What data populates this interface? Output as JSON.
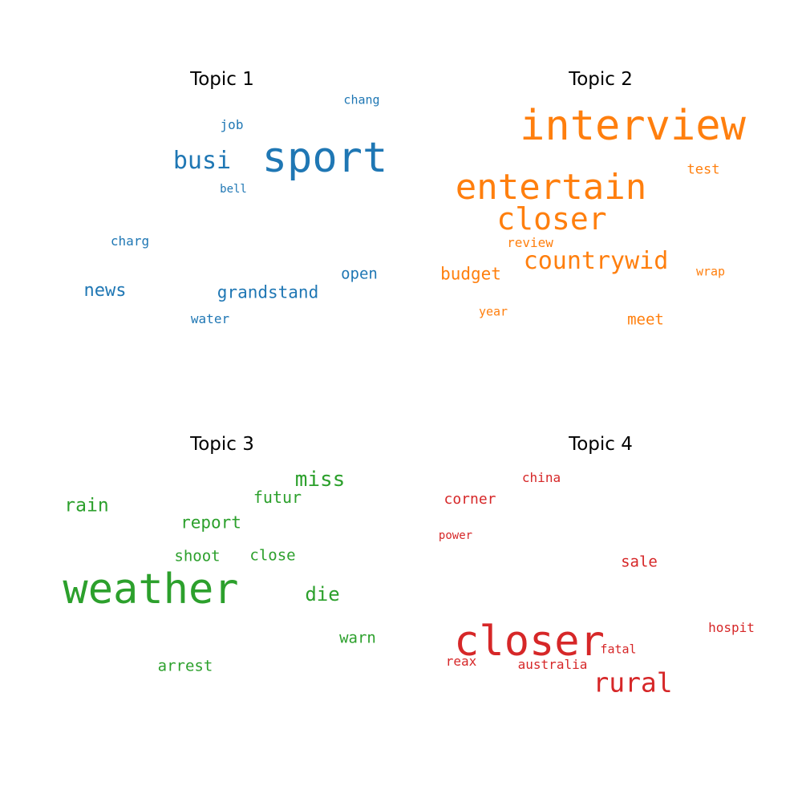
{
  "chart_data": [
    {
      "type": "wordcloud",
      "title": "Topic 1",
      "color": "#1f77b4",
      "words": [
        "sport",
        "busi",
        "grandstand",
        "news",
        "open",
        "charg",
        "chang",
        "job",
        "water",
        "bell"
      ]
    },
    {
      "type": "wordcloud",
      "title": "Topic 2",
      "color": "#ff7f0e",
      "words": [
        "interview",
        "entertain",
        "closer",
        "countrywid",
        "budget",
        "meet",
        "test",
        "review",
        "wrap",
        "year"
      ]
    },
    {
      "type": "wordcloud",
      "title": "Topic 3",
      "color": "#2ca02c",
      "words": [
        "weather",
        "miss",
        "rain",
        "die",
        "report",
        "futur",
        "warn",
        "close",
        "shoot",
        "arrest"
      ]
    },
    {
      "type": "wordcloud",
      "title": "Topic 4",
      "color": "#d62728",
      "words": [
        "closer",
        "rural",
        "sale",
        "corner",
        "china",
        "hospit",
        "fatal",
        "reax",
        "australia",
        "power"
      ]
    }
  ]
}
